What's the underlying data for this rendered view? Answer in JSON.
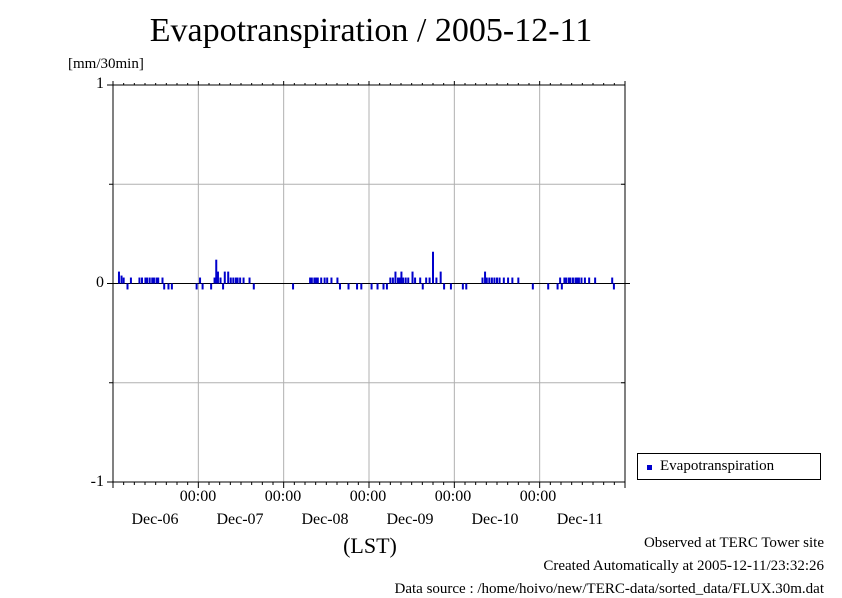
{
  "chart_data": {
    "type": "bar",
    "title": "Evapotranspiration / 2005-12-11",
    "ylabel": "[mm/30min]",
    "xlabel": "(LST)",
    "ylim": [
      -1,
      1
    ],
    "yticks": [
      {
        "v": 1,
        "label": "1"
      },
      {
        "v": 0,
        "label": "0"
      },
      {
        "v": -1,
        "label": "-1"
      }
    ],
    "xlim": [
      0,
      6
    ],
    "x_unit": "days since Dec-06 00:00 (LST)",
    "day_ticks": [
      {
        "day": 1,
        "time": "00:00"
      },
      {
        "day": 2,
        "time": "00:00"
      },
      {
        "day": 3,
        "time": "00:00"
      },
      {
        "day": 4,
        "time": "00:00"
      },
      {
        "day": 5,
        "time": "00:00"
      }
    ],
    "date_labels": [
      {
        "day": 0.5,
        "label": "Dec-06"
      },
      {
        "day": 1.5,
        "label": "Dec-07"
      },
      {
        "day": 2.5,
        "label": "Dec-08"
      },
      {
        "day": 3.5,
        "label": "Dec-09"
      },
      {
        "day": 4.5,
        "label": "Dec-10"
      },
      {
        "day": 5.5,
        "label": "Dec-11"
      }
    ],
    "grid": true,
    "legend_position": "right",
    "series": [
      {
        "name": "Evapotranspiration",
        "color": "#0000cc",
        "points": [
          [
            0.07,
            0.06
          ],
          [
            0.1,
            0.04
          ],
          [
            0.125,
            0.03
          ],
          [
            0.17,
            -0.03
          ],
          [
            0.21,
            0.03
          ],
          [
            0.31,
            0.03
          ],
          [
            0.34,
            0.03
          ],
          [
            0.38,
            0.03
          ],
          [
            0.4,
            0.03
          ],
          [
            0.43,
            0.03
          ],
          [
            0.46,
            0.03
          ],
          [
            0.48,
            0.03
          ],
          [
            0.51,
            0.03
          ],
          [
            0.53,
            0.03
          ],
          [
            0.58,
            0.03
          ],
          [
            0.6,
            -0.03
          ],
          [
            0.65,
            -0.03
          ],
          [
            0.69,
            -0.03
          ],
          [
            0.98,
            -0.03
          ],
          [
            1.02,
            0.03
          ],
          [
            1.05,
            -0.03
          ],
          [
            1.15,
            -0.03
          ],
          [
            1.19,
            0.03
          ],
          [
            1.21,
            0.12
          ],
          [
            1.23,
            0.06
          ],
          [
            1.26,
            0.03
          ],
          [
            1.29,
            -0.03
          ],
          [
            1.31,
            0.06
          ],
          [
            1.35,
            0.06
          ],
          [
            1.38,
            0.03
          ],
          [
            1.41,
            0.03
          ],
          [
            1.44,
            0.03
          ],
          [
            1.46,
            0.03
          ],
          [
            1.49,
            0.03
          ],
          [
            1.53,
            0.03
          ],
          [
            1.6,
            0.03
          ],
          [
            1.65,
            -0.03
          ],
          [
            2.11,
            -0.03
          ],
          [
            2.31,
            0.03
          ],
          [
            2.33,
            0.03
          ],
          [
            2.36,
            0.03
          ],
          [
            2.38,
            0.03
          ],
          [
            2.4,
            0.03
          ],
          [
            2.44,
            0.03
          ],
          [
            2.48,
            0.03
          ],
          [
            2.51,
            0.03
          ],
          [
            2.56,
            0.03
          ],
          [
            2.63,
            0.03
          ],
          [
            2.66,
            -0.03
          ],
          [
            2.76,
            -0.03
          ],
          [
            2.86,
            -0.03
          ],
          [
            2.91,
            -0.03
          ],
          [
            3.03,
            -0.03
          ],
          [
            3.1,
            -0.03
          ],
          [
            3.17,
            -0.03
          ],
          [
            3.21,
            -0.03
          ],
          [
            3.25,
            0.03
          ],
          [
            3.28,
            0.03
          ],
          [
            3.31,
            0.06
          ],
          [
            3.34,
            0.03
          ],
          [
            3.36,
            0.03
          ],
          [
            3.38,
            0.06
          ],
          [
            3.4,
            0.03
          ],
          [
            3.43,
            0.03
          ],
          [
            3.46,
            0.03
          ],
          [
            3.51,
            0.06
          ],
          [
            3.54,
            0.03
          ],
          [
            3.6,
            0.03
          ],
          [
            3.63,
            -0.03
          ],
          [
            3.67,
            0.03
          ],
          [
            3.71,
            0.03
          ],
          [
            3.75,
            0.16
          ],
          [
            3.79,
            0.03
          ],
          [
            3.84,
            0.06
          ],
          [
            3.88,
            -0.03
          ],
          [
            3.96,
            -0.03
          ],
          [
            4.1,
            -0.03
          ],
          [
            4.14,
            -0.03
          ],
          [
            4.33,
            0.03
          ],
          [
            4.36,
            0.06
          ],
          [
            4.38,
            0.03
          ],
          [
            4.41,
            0.03
          ],
          [
            4.44,
            0.03
          ],
          [
            4.47,
            0.03
          ],
          [
            4.5,
            0.03
          ],
          [
            4.53,
            0.03
          ],
          [
            4.58,
            0.03
          ],
          [
            4.63,
            0.03
          ],
          [
            4.68,
            0.03
          ],
          [
            4.75,
            0.03
          ],
          [
            4.92,
            -0.03
          ],
          [
            5.1,
            -0.03
          ],
          [
            5.21,
            -0.03
          ],
          [
            5.24,
            0.03
          ],
          [
            5.26,
            -0.03
          ],
          [
            5.29,
            0.03
          ],
          [
            5.31,
            0.03
          ],
          [
            5.34,
            0.03
          ],
          [
            5.36,
            0.03
          ],
          [
            5.39,
            0.03
          ],
          [
            5.42,
            0.03
          ],
          [
            5.44,
            0.03
          ],
          [
            5.46,
            0.03
          ],
          [
            5.49,
            0.03
          ],
          [
            5.53,
            0.03
          ],
          [
            5.58,
            0.03
          ],
          [
            5.65,
            0.03
          ],
          [
            5.85,
            0.03
          ],
          [
            5.87,
            -0.03
          ]
        ]
      }
    ]
  },
  "footer": {
    "line1": "Observed at TERC Tower site",
    "line2": "Created Automatically at 2005-12-11/23:32:26",
    "line3": "Data source : /home/hoivo/new/TERC-data/sorted_data/FLUX.30m.dat"
  }
}
